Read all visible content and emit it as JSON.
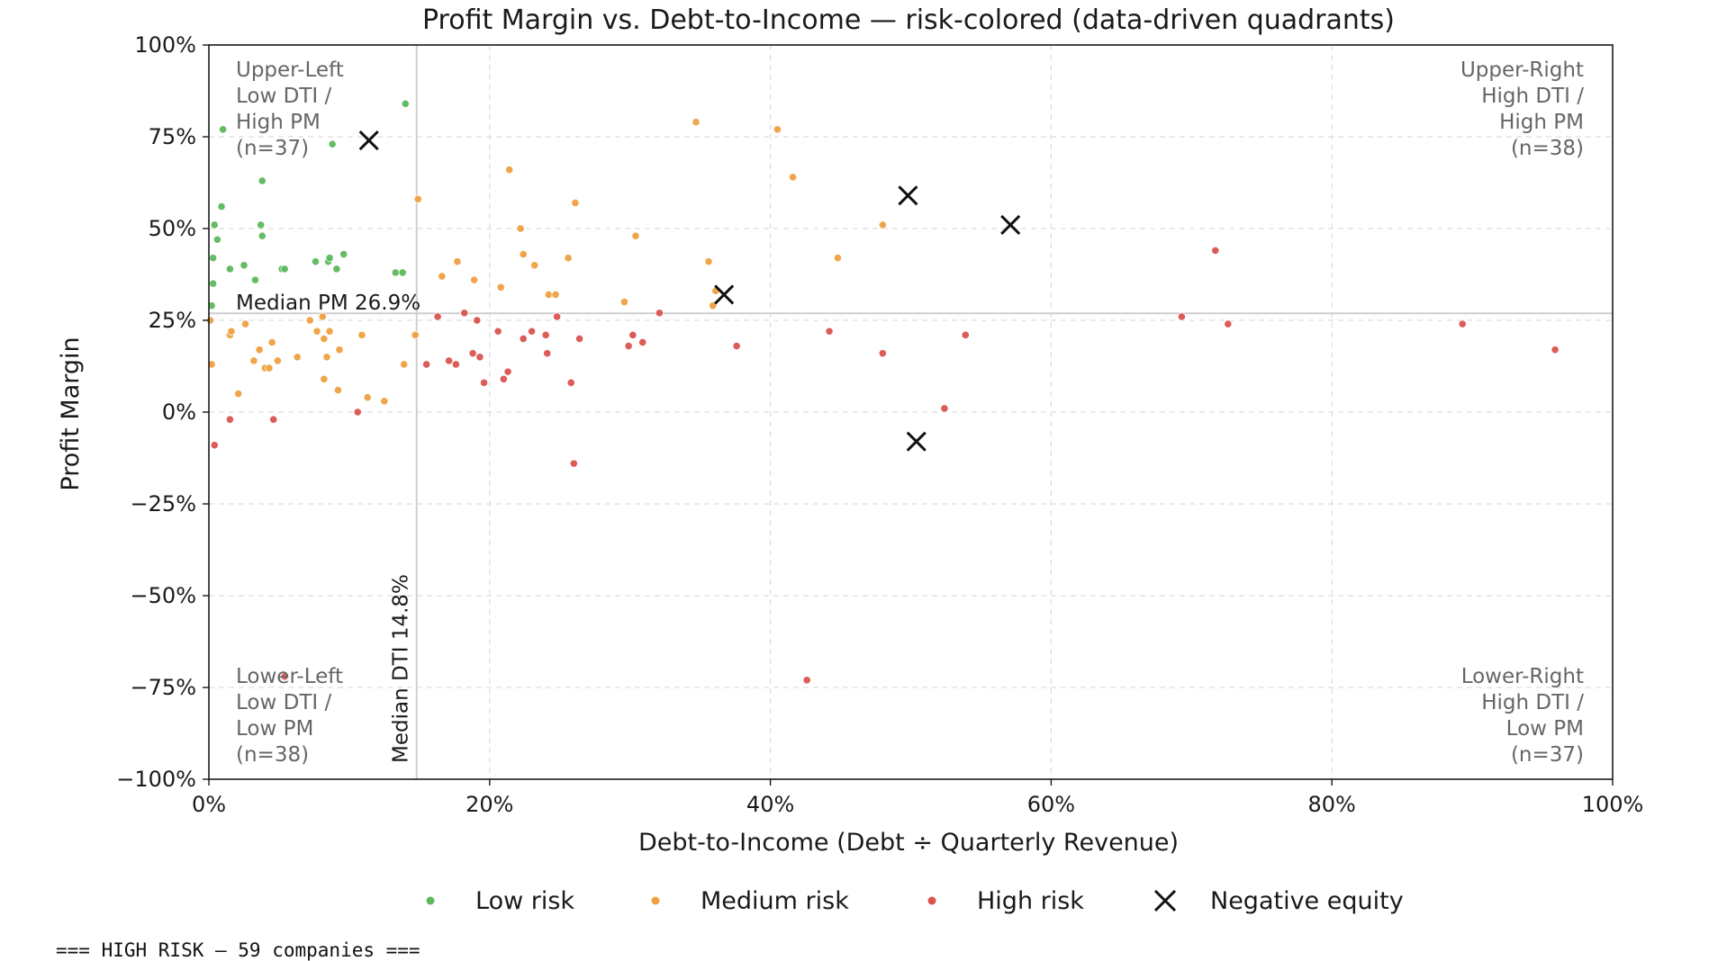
{
  "chart_data": {
    "type": "scatter",
    "title": "Profit Margin vs. Debt-to-Income — risk-colored (data-driven quadrants)",
    "xlabel": "Debt-to-Income (Debt ÷ Quarterly Revenue)",
    "ylabel": "Profit Margin",
    "xlim": [
      0,
      100
    ],
    "ylim": [
      -100,
      100
    ],
    "x_ticks": [
      0,
      20,
      40,
      60,
      80,
      100
    ],
    "x_tick_labels": [
      "0%",
      "20%",
      "40%",
      "60%",
      "80%",
      "100%"
    ],
    "y_ticks": [
      100,
      75,
      50,
      25,
      0,
      -25,
      -50,
      -75,
      -100
    ],
    "y_tick_labels": [
      "100%",
      "75%",
      "50%",
      "25%",
      "0%",
      "−25%",
      "−50%",
      "−75%",
      "−100%"
    ],
    "grid": true,
    "legend_position": "bottom-center",
    "median_lines": {
      "x": {
        "value": 14.8,
        "label": "Median DTI 14.8%"
      },
      "y": {
        "value": 26.9,
        "label": "Median PM 26.9%"
      }
    },
    "quadrant_labels": [
      {
        "position": "top-left",
        "lines": [
          "Upper-Left",
          "Low DTI /",
          "High PM",
          "(n=37)"
        ]
      },
      {
        "position": "top-right",
        "lines": [
          "Upper-Right",
          "High DTI /",
          "High PM",
          "(n=38)"
        ]
      },
      {
        "position": "bottom-left",
        "lines": [
          "Lower-Left",
          "Low DTI /",
          "Low PM",
          "(n=38)"
        ]
      },
      {
        "position": "bottom-right",
        "lines": [
          "Lower-Right",
          "High DTI /",
          "Low PM",
          "(n=37)"
        ]
      }
    ],
    "series": [
      {
        "name": "Low risk",
        "color": "#5cb85c",
        "marker": "dot",
        "points": [
          [
            0.2,
            29
          ],
          [
            0.3,
            35
          ],
          [
            0.3,
            42
          ],
          [
            0.4,
            51
          ],
          [
            0.6,
            47
          ],
          [
            0.9,
            56
          ],
          [
            1.0,
            77
          ],
          [
            1.5,
            39
          ],
          [
            2.5,
            40
          ],
          [
            3.3,
            36
          ],
          [
            3.7,
            51
          ],
          [
            3.8,
            48
          ],
          [
            3.8,
            63
          ],
          [
            5.2,
            39
          ],
          [
            5.4,
            39
          ],
          [
            7.6,
            41
          ],
          [
            8.5,
            41
          ],
          [
            8.6,
            42
          ],
          [
            8.8,
            73
          ],
          [
            9.1,
            39
          ],
          [
            9.6,
            43
          ],
          [
            13.3,
            38
          ],
          [
            13.8,
            38
          ],
          [
            14.0,
            84
          ]
        ]
      },
      {
        "name": "Medium risk",
        "color": "#f0a040",
        "marker": "dot",
        "points": [
          [
            0.1,
            25
          ],
          [
            0.2,
            13
          ],
          [
            1.5,
            21
          ],
          [
            1.6,
            22
          ],
          [
            2.1,
            5
          ],
          [
            2.6,
            24
          ],
          [
            3.2,
            14
          ],
          [
            3.6,
            17
          ],
          [
            4.0,
            12
          ],
          [
            4.3,
            12
          ],
          [
            4.5,
            19
          ],
          [
            4.9,
            14
          ],
          [
            6.3,
            15
          ],
          [
            7.2,
            25
          ],
          [
            7.7,
            22
          ],
          [
            8.1,
            26
          ],
          [
            8.2,
            20
          ],
          [
            8.2,
            9
          ],
          [
            8.4,
            15
          ],
          [
            8.6,
            22
          ],
          [
            9.2,
            6
          ],
          [
            9.3,
            17
          ],
          [
            10.9,
            21
          ],
          [
            11.3,
            4
          ],
          [
            12.5,
            3
          ],
          [
            13.9,
            13
          ],
          [
            14.7,
            21
          ],
          [
            14.9,
            58
          ],
          [
            16.6,
            37
          ],
          [
            17.7,
            41
          ],
          [
            18.9,
            36
          ],
          [
            20.8,
            34
          ],
          [
            21.4,
            66
          ],
          [
            22.2,
            50
          ],
          [
            22.4,
            43
          ],
          [
            23.2,
            40
          ],
          [
            24.2,
            32
          ],
          [
            24.7,
            32
          ],
          [
            25.6,
            42
          ],
          [
            26.1,
            57
          ],
          [
            29.6,
            30
          ],
          [
            30.4,
            48
          ],
          [
            34.7,
            79
          ],
          [
            35.6,
            41
          ],
          [
            35.9,
            29
          ],
          [
            36.1,
            33
          ],
          [
            40.5,
            77
          ],
          [
            41.6,
            64
          ],
          [
            44.8,
            42
          ],
          [
            48.0,
            51
          ]
        ]
      },
      {
        "name": "High risk",
        "color": "#d9534f",
        "marker": "dot",
        "points": [
          [
            0.4,
            -9
          ],
          [
            1.5,
            -2
          ],
          [
            4.6,
            -2
          ],
          [
            5.4,
            -72
          ],
          [
            10.6,
            0
          ],
          [
            15.5,
            13
          ],
          [
            16.3,
            26
          ],
          [
            17.1,
            14
          ],
          [
            17.6,
            13
          ],
          [
            18.2,
            27
          ],
          [
            18.8,
            16
          ],
          [
            19.1,
            25
          ],
          [
            19.3,
            15
          ],
          [
            19.6,
            8
          ],
          [
            20.6,
            22
          ],
          [
            21.0,
            9
          ],
          [
            21.3,
            11
          ],
          [
            22.4,
            20
          ],
          [
            23.0,
            22
          ],
          [
            24.0,
            21
          ],
          [
            24.1,
            16
          ],
          [
            24.8,
            26
          ],
          [
            25.8,
            8
          ],
          [
            26.0,
            -14
          ],
          [
            26.4,
            20
          ],
          [
            29.9,
            18
          ],
          [
            30.2,
            21
          ],
          [
            30.9,
            19
          ],
          [
            32.1,
            27
          ],
          [
            37.6,
            18
          ],
          [
            42.6,
            -73
          ],
          [
            44.2,
            22
          ],
          [
            48.0,
            16
          ],
          [
            52.4,
            1
          ],
          [
            53.9,
            21
          ],
          [
            69.3,
            26
          ],
          [
            71.7,
            44
          ],
          [
            72.6,
            24
          ],
          [
            89.3,
            24
          ],
          [
            95.9,
            17
          ]
        ]
      },
      {
        "name": "Negative equity",
        "color": "#111111",
        "marker": "x",
        "points": [
          [
            11.4,
            74
          ],
          [
            36.7,
            32
          ],
          [
            49.8,
            59
          ],
          [
            50.4,
            -8
          ],
          [
            57.1,
            51
          ]
        ]
      }
    ]
  },
  "console": {
    "line": "=== HIGH RISK — 59 companies ==="
  }
}
